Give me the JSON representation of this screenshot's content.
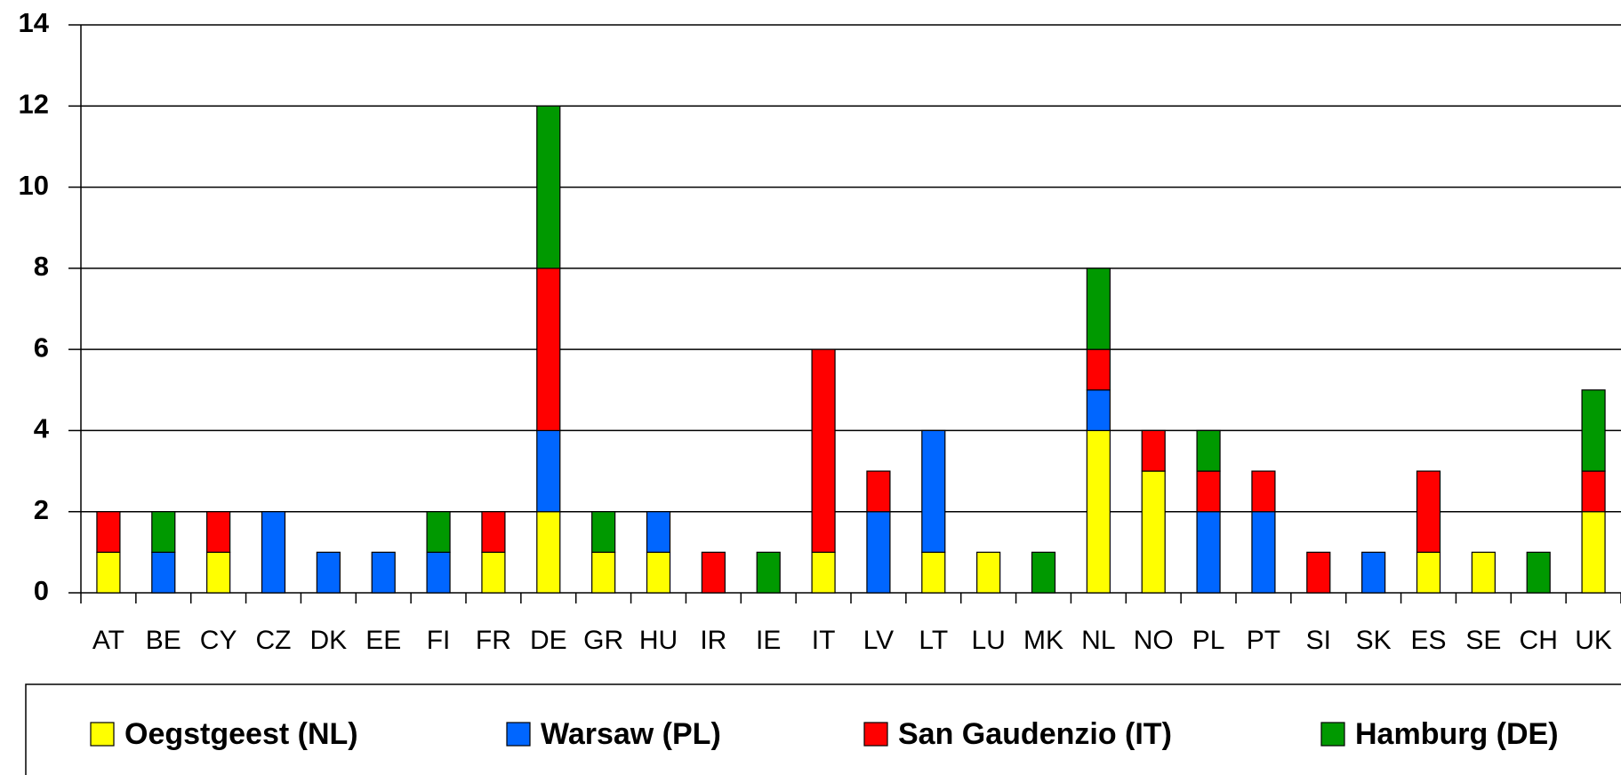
{
  "chart_data": {
    "type": "stacked_bar",
    "categories": [
      "AT",
      "BE",
      "CY",
      "CZ",
      "DK",
      "EE",
      "FI",
      "FR",
      "DE",
      "GR",
      "HU",
      "IR",
      "IE",
      "IT",
      "LV",
      "LT",
      "LU",
      "MK",
      "NL",
      "NO",
      "PL",
      "PT",
      "SI",
      "SK",
      "ES",
      "SE",
      "CH",
      "UK"
    ],
    "series": [
      {
        "name": "Oegstgeest (NL)",
        "color": "#ffff00",
        "values": [
          1,
          0,
          1,
          0,
          0,
          0,
          0,
          1,
          2,
          1,
          1,
          0,
          0,
          1,
          0,
          1,
          1,
          0,
          4,
          3,
          0,
          0,
          0,
          0,
          1,
          1,
          0,
          2
        ]
      },
      {
        "name": "Warsaw (PL)",
        "color": "#0066ff",
        "values": [
          0,
          1,
          0,
          2,
          1,
          1,
          1,
          0,
          2,
          0,
          1,
          0,
          0,
          0,
          2,
          3,
          0,
          0,
          1,
          0,
          2,
          2,
          0,
          1,
          0,
          0,
          0,
          0
        ]
      },
      {
        "name": "San Gaudenzio (IT)",
        "color": "#ff0000",
        "values": [
          1,
          0,
          1,
          0,
          0,
          0,
          0,
          1,
          4,
          0,
          0,
          1,
          0,
          5,
          1,
          0,
          0,
          0,
          1,
          1,
          1,
          1,
          1,
          0,
          2,
          0,
          0,
          1
        ]
      },
      {
        "name": "Hamburg (DE)",
        "color": "#009900",
        "values": [
          0,
          1,
          0,
          0,
          0,
          0,
          1,
          0,
          4,
          1,
          0,
          0,
          1,
          0,
          0,
          0,
          0,
          1,
          2,
          0,
          1,
          0,
          0,
          0,
          0,
          0,
          1,
          2
        ]
      }
    ],
    "ylim": [
      0,
      14
    ],
    "yticks": [
      0,
      2,
      4,
      6,
      8,
      10,
      12,
      14
    ],
    "grid": true,
    "legend": "bottom"
  }
}
